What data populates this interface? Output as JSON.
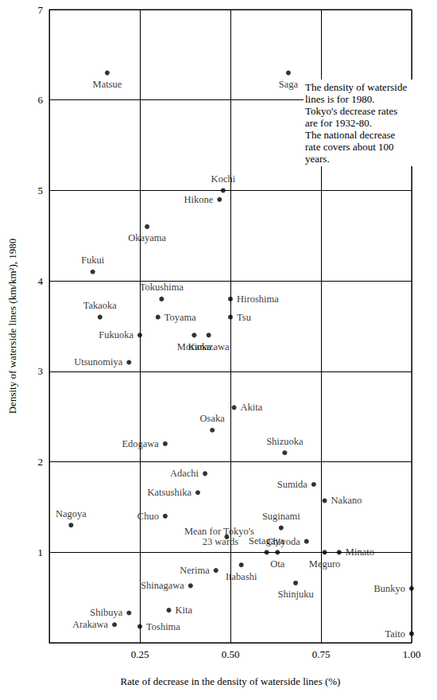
{
  "chart_data": {
    "type": "scatter",
    "x_label": "Rate of decrease in the density of waterside lines (%)",
    "y_label": "Density of waterside lines (km/km²), 1980",
    "annotations": [
      "The density of waterside lines is for 1980.",
      "Tokyo's decrease rates are for 1932-80.",
      "The national decrease rate covers about 100 years."
    ],
    "color": "#000000",
    "marker": "circle",
    "grid": true,
    "xlim": [
      0,
      1
    ],
    "xticks": [
      0.25,
      {
        "value": 0.5,
        "label": "0.50"
      },
      0.75,
      {
        "value": 1,
        "label": "1.00"
      }
    ],
    "ylim": [
      0,
      7
    ],
    "yticks": [
      1,
      2,
      3,
      4,
      5,
      6,
      7
    ],
    "points": [
      {
        "label": "Matsue",
        "x": 0.16,
        "y": 6.3
      },
      {
        "label": "Saga",
        "x": 0.66,
        "y": 6.3
      },
      {
        "label": "Kochi",
        "x": 0.48,
        "y": 5.0
      },
      {
        "label": "Hikone",
        "x": 0.47,
        "y": 4.9
      },
      {
        "label": "Okayama",
        "x": 0.27,
        "y": 4.6
      },
      {
        "label": "Fukui",
        "x": 0.12,
        "y": 4.1
      },
      {
        "label": "Tokushima",
        "x": 0.31,
        "y": 3.8
      },
      {
        "label": "Hiroshima",
        "x": 0.5,
        "y": 3.8
      },
      {
        "label": "Takaoka",
        "x": 0.14,
        "y": 3.6
      },
      {
        "label": "Toyama",
        "x": 0.3,
        "y": 3.6
      },
      {
        "label": "Tsu",
        "x": 0.5,
        "y": 3.6
      },
      {
        "label": "Fukuoka",
        "x": 0.25,
        "y": 3.4
      },
      {
        "label": "Morioka",
        "x": 0.4,
        "y": 3.4
      },
      {
        "label": "Kanazawa",
        "x": 0.44,
        "y": 3.4
      },
      {
        "label": "Utsunomiya",
        "x": 0.22,
        "y": 3.1
      },
      {
        "label": "Akita",
        "x": 0.51,
        "y": 2.6
      },
      {
        "label": "Osaka",
        "x": 0.45,
        "y": 2.35
      },
      {
        "label": "Edogawa",
        "x": 0.32,
        "y": 2.2
      },
      {
        "label": "Shizuoka",
        "x": 0.65,
        "y": 2.1
      },
      {
        "label": "Adachi",
        "x": 0.43,
        "y": 1.87
      },
      {
        "label": "Sumida",
        "x": 0.73,
        "y": 1.75
      },
      {
        "label": "Katsushika",
        "x": 0.41,
        "y": 1.66
      },
      {
        "label": "Nakano",
        "x": 0.76,
        "y": 1.57
      },
      {
        "label": "Chuo",
        "x": 0.32,
        "y": 1.4
      },
      {
        "label": "Nagoya",
        "x": 0.06,
        "y": 1.3
      },
      {
        "label": "Suginami",
        "x": 0.64,
        "y": 1.27
      },
      {
        "label": "Mean for Tokyo's 23 wards",
        "x": 0.49,
        "y": 1.17
      },
      {
        "label": "Chiyoda",
        "x": 0.71,
        "y": 1.12
      },
      {
        "label": "Setagaya",
        "x": 0.6,
        "y": 1.0
      },
      {
        "label": "Ota",
        "x": 0.63,
        "y": 1.0
      },
      {
        "label": "Meguro",
        "x": 0.76,
        "y": 1.0
      },
      {
        "label": "Minato",
        "x": 0.8,
        "y": 1.0
      },
      {
        "label": "Nerima",
        "x": 0.46,
        "y": 0.8
      },
      {
        "label": "Itabashi",
        "x": 0.53,
        "y": 0.86
      },
      {
        "label": "Shinjuku",
        "x": 0.68,
        "y": 0.66
      },
      {
        "label": "Shinagawa",
        "x": 0.39,
        "y": 0.63
      },
      {
        "label": "Bunkyo",
        "x": 1.0,
        "y": 0.6
      },
      {
        "label": "Kita",
        "x": 0.33,
        "y": 0.36
      },
      {
        "label": "Shibuya",
        "x": 0.22,
        "y": 0.33
      },
      {
        "label": "Arakawa",
        "x": 0.18,
        "y": 0.2
      },
      {
        "label": "Toshima",
        "x": 0.25,
        "y": 0.18
      },
      {
        "label": "Taito",
        "x": 1.0,
        "y": 0.1
      }
    ]
  }
}
